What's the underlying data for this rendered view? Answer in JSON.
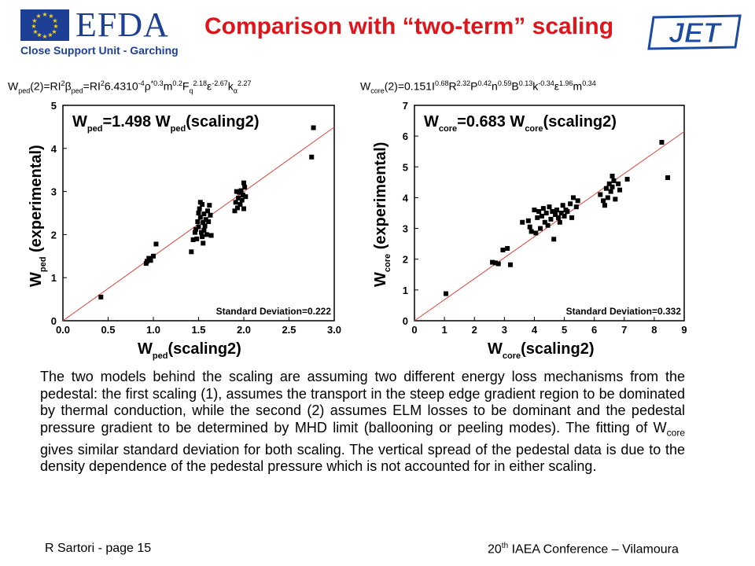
{
  "header": {
    "logo_text": "EFDA",
    "logo_subtitle": "Close Support Unit - Garching",
    "title": "Comparison with “two-term” scaling",
    "right_logo_text": "JET"
  },
  "formulas": {
    "left": {
      "a": "W",
      "a_sub": "ped",
      "b": "(2)=RI",
      "b_sup": "2",
      "c": "β",
      "c_sub": "ped",
      "d": "=RI",
      "d_sup": "2",
      "e": "6.4310",
      "e_sup": "-4",
      "f": "ρ",
      "f_sup": "*0.3",
      "g": "m",
      "g_sup": "0.2",
      "h": "F",
      "h_sub": "q",
      "h_sup": "2.18",
      "i": "ε",
      "i_sup": "-2.67",
      "j": "k",
      "j_sub": "α",
      "j_sup": "2.27"
    },
    "right": {
      "a": "W",
      "a_sub": "core",
      "b": "(2)=0.151I",
      "b_sup": "0.68",
      "c": "R",
      "c_sup": "2.32",
      "d": "P",
      "d_sup": "0.42",
      "e": "n",
      "e_sup": "0.59",
      "f": "B",
      "f_sup": "0.13",
      "g": "k",
      "g_sup": "-0.34",
      "h": "ε",
      "h_sup": "1.96",
      "i": "m",
      "i_sup": "0.34"
    }
  },
  "chart_data": [
    {
      "type": "scatter",
      "annotation": {
        "a": "W",
        "a_sub": "ped",
        "b": "=1.498 W",
        "b_sub": "ped",
        "c": "(scaling2)"
      },
      "std_label": "Standard Deviation=0.222",
      "xlabel": {
        "a": "W",
        "a_sub": "ped",
        "b": "(scaling2)"
      },
      "ylabel": {
        "a": "W",
        "a_sub": "ped",
        "b": " (experimental)"
      },
      "xlim": [
        0,
        3.0
      ],
      "ylim": [
        0,
        5
      ],
      "xticks": [
        0.0,
        0.5,
        1.0,
        1.5,
        2.0,
        2.5,
        3.0
      ],
      "xtick_labels": [
        "0.0",
        "0.5",
        "1.0",
        "1.5",
        "2.0",
        "2.5",
        "3.0"
      ],
      "yticks": [
        0,
        1,
        2,
        3,
        4,
        5
      ],
      "ytick_labels": [
        "0",
        "1",
        "2",
        "3",
        "4",
        "5"
      ],
      "fit_slope": 1.498,
      "fit_color": "#e8413c",
      "points": [
        [
          0.42,
          0.55
        ],
        [
          0.92,
          1.33
        ],
        [
          0.93,
          1.38
        ],
        [
          0.95,
          1.45
        ],
        [
          0.97,
          1.4
        ],
        [
          1.0,
          1.5
        ],
        [
          1.03,
          1.78
        ],
        [
          1.42,
          1.6
        ],
        [
          1.44,
          1.88
        ],
        [
          1.46,
          2.05
        ],
        [
          1.47,
          2.12
        ],
        [
          1.48,
          1.9
        ],
        [
          1.49,
          2.3
        ],
        [
          1.5,
          2.5
        ],
        [
          1.5,
          2.18
        ],
        [
          1.51,
          2.6
        ],
        [
          1.52,
          2.75
        ],
        [
          1.52,
          2.4
        ],
        [
          1.53,
          2.05
        ],
        [
          1.54,
          1.95
        ],
        [
          1.54,
          2.7
        ],
        [
          1.55,
          2.28
        ],
        [
          1.55,
          1.8
        ],
        [
          1.56,
          2.48
        ],
        [
          1.56,
          2.1
        ],
        [
          1.57,
          2.2
        ],
        [
          1.58,
          2.35
        ],
        [
          1.59,
          2.0
        ],
        [
          1.6,
          2.55
        ],
        [
          1.61,
          2.3
        ],
        [
          1.62,
          2.68
        ],
        [
          1.63,
          2.45
        ],
        [
          1.64,
          1.98
        ],
        [
          1.9,
          2.55
        ],
        [
          1.91,
          2.75
        ],
        [
          1.92,
          3.0
        ],
        [
          1.93,
          2.62
        ],
        [
          1.94,
          2.85
        ],
        [
          1.95,
          2.98
        ],
        [
          1.96,
          2.7
        ],
        [
          1.97,
          3.02
        ],
        [
          1.98,
          2.8
        ],
        [
          1.99,
          2.92
        ],
        [
          2.0,
          3.2
        ],
        [
          2.0,
          2.6
        ],
        [
          2.01,
          3.1
        ],
        [
          2.02,
          2.88
        ],
        [
          2.75,
          3.8
        ],
        [
          2.77,
          4.48
        ]
      ]
    },
    {
      "type": "scatter",
      "annotation": {
        "a": "W",
        "a_sub": "core",
        "b": "=0.683 W",
        "b_sub": "core",
        "c": "(scaling2)"
      },
      "std_label": "Standard Deviation=0.332",
      "xlabel": {
        "a": "W",
        "a_sub": "core",
        "b": "(scaling2)"
      },
      "ylabel": {
        "a": "W",
        "a_sub": "core",
        "b": " (experimental)"
      },
      "xlim": [
        0,
        9
      ],
      "ylim": [
        0,
        7
      ],
      "xticks": [
        0,
        1,
        2,
        3,
        4,
        5,
        6,
        7,
        8,
        9
      ],
      "xtick_labels": [
        "0",
        "1",
        "2",
        "3",
        "4",
        "5",
        "6",
        "7",
        "8",
        "9"
      ],
      "yticks": [
        0,
        1,
        2,
        3,
        4,
        5,
        6,
        7
      ],
      "ytick_labels": [
        "0",
        "1",
        "2",
        "3",
        "4",
        "5",
        "6",
        "7"
      ],
      "fit_slope": 0.683,
      "fit_color": "#e8413c",
      "points": [
        [
          1.05,
          0.88
        ],
        [
          2.6,
          1.9
        ],
        [
          2.7,
          1.88
        ],
        [
          2.8,
          1.85
        ],
        [
          2.95,
          2.3
        ],
        [
          3.1,
          2.35
        ],
        [
          3.2,
          1.82
        ],
        [
          3.6,
          3.2
        ],
        [
          3.8,
          3.25
        ],
        [
          3.85,
          3.05
        ],
        [
          3.9,
          2.9
        ],
        [
          4.0,
          3.6
        ],
        [
          4.05,
          2.85
        ],
        [
          4.1,
          3.35
        ],
        [
          4.15,
          3.55
        ],
        [
          4.2,
          3.0
        ],
        [
          4.25,
          3.4
        ],
        [
          4.3,
          3.65
        ],
        [
          4.35,
          3.2
        ],
        [
          4.4,
          3.5
        ],
        [
          4.45,
          3.1
        ],
        [
          4.5,
          3.7
        ],
        [
          4.55,
          3.3
        ],
        [
          4.6,
          3.55
        ],
        [
          4.65,
          2.65
        ],
        [
          4.7,
          3.45
        ],
        [
          4.75,
          3.6
        ],
        [
          4.8,
          3.35
        ],
        [
          4.85,
          3.2
        ],
        [
          4.9,
          3.5
        ],
        [
          4.95,
          3.75
        ],
        [
          5.0,
          3.4
        ],
        [
          5.05,
          3.6
        ],
        [
          5.1,
          3.55
        ],
        [
          5.2,
          3.8
        ],
        [
          5.25,
          3.35
        ],
        [
          5.3,
          4.0
        ],
        [
          5.4,
          3.7
        ],
        [
          5.45,
          3.9
        ],
        [
          6.2,
          4.1
        ],
        [
          6.3,
          3.9
        ],
        [
          6.35,
          3.75
        ],
        [
          6.4,
          4.3
        ],
        [
          6.45,
          4.0
        ],
        [
          6.5,
          4.45
        ],
        [
          6.55,
          4.2
        ],
        [
          6.6,
          4.7
        ],
        [
          6.6,
          4.35
        ],
        [
          6.65,
          4.55
        ],
        [
          6.7,
          3.95
        ],
        [
          6.8,
          4.45
        ],
        [
          6.85,
          4.25
        ],
        [
          7.1,
          4.6
        ],
        [
          8.25,
          5.8
        ],
        [
          8.45,
          4.65
        ]
      ]
    }
  ],
  "body": {
    "p1": "The two models behind the scaling are assuming two different energy loss mechanisms from the pedestal: the first scaling (1), assumes the transport in the steep edge gradient region to be dominated by thermal conduction, while the second (2) assumes ELM losses to be dominant and the pedestal pressure gradient to be determined by MHD limit (ballooning or peeling modes). The fitting of W",
    "p1_sub": "core",
    "p2": " gives similar standard deviation for both scaling. The vertical spread of the pedestal data is due to the density dependence of the pedestal pressure which is not accounted for in either scaling."
  },
  "footer": {
    "left": "R Sartori  - page 15",
    "right_a": "20",
    "right_sup": "th",
    "right_b": " IAEA Conference – Vilamoura"
  },
  "colors": {
    "title_red": "#e0151b",
    "efda_blue": "#1d3f95",
    "jet_blue": "#1b4aa0",
    "fit_line": "#e8413c"
  }
}
